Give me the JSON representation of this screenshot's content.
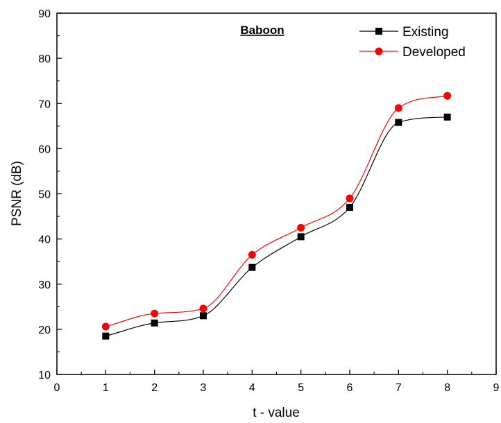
{
  "chart_data": {
    "type": "line",
    "title": "Baboon",
    "xlabel": "t - value",
    "ylabel": "PSNR (dB)",
    "xlim": [
      0,
      9
    ],
    "ylim": [
      10,
      90
    ],
    "xticks": [
      0,
      1,
      2,
      3,
      4,
      5,
      6,
      7,
      8,
      9
    ],
    "yticks": [
      10,
      20,
      30,
      40,
      50,
      60,
      70,
      80,
      90
    ],
    "grid": false,
    "smooth": true,
    "legend_position": "top-right",
    "x": [
      1,
      2,
      3,
      4,
      5,
      6,
      7,
      8
    ],
    "series": [
      {
        "name": "Existing",
        "color": "#000000",
        "marker": "square",
        "values": [
          18.5,
          21.4,
          23.0,
          33.7,
          40.5,
          47.0,
          65.8,
          67.0
        ]
      },
      {
        "name": "Developed",
        "color": "#ff0000",
        "marker": "circle",
        "values": [
          20.6,
          23.5,
          24.6,
          36.5,
          42.5,
          49.0,
          69.0,
          71.7
        ]
      }
    ]
  }
}
